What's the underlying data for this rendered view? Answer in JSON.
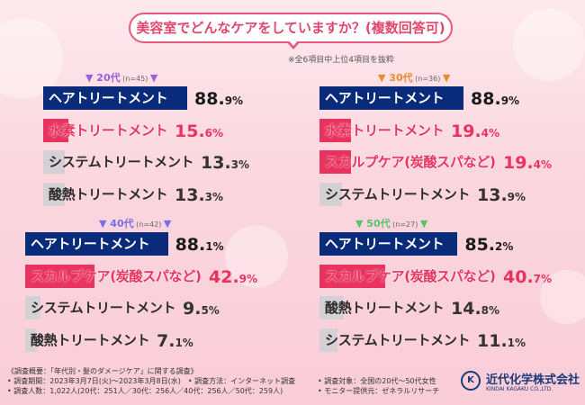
{
  "question": "美容室でどんなケアをしていますか？(複数回答可)",
  "note": "※全6項目中上位4項目を抜粋",
  "colors": {
    "navy": "#0a2a7a",
    "pink": "#e8335f",
    "gray": "#d4d0d4",
    "age20": "#9a5fd9",
    "age30": "#ef8a2a",
    "age40": "#7a6ee6",
    "age50": "#59c46a"
  },
  "chart_data": [
    {
      "type": "bar",
      "group": "20代",
      "n": "(n=45)",
      "categories": [
        "ヘアトリートメント",
        "水素トリートメント",
        "システムトリートメント",
        "酸熱トリートメント"
      ],
      "values": [
        88.9,
        15.6,
        13.3,
        13.3
      ],
      "value_labels": [
        [
          "88.",
          "9%"
        ],
        [
          "15.",
          "6%"
        ],
        [
          "13.",
          "3%"
        ],
        [
          "13.",
          "3%"
        ]
      ]
    },
    {
      "type": "bar",
      "group": "30代",
      "n": "(n=36)",
      "categories": [
        "ヘアトリートメント",
        "水素トリートメント",
        "スカルプケア(炭酸スパなど)",
        "システムトリートメント"
      ],
      "values": [
        88.9,
        19.4,
        19.4,
        13.9
      ],
      "value_labels": [
        [
          "88.",
          "9%"
        ],
        [
          "19.",
          "4%"
        ],
        [
          "19.",
          "4%"
        ],
        [
          "13.",
          "9%"
        ]
      ]
    },
    {
      "type": "bar",
      "group": "40代",
      "n": "(n=42)",
      "categories": [
        "ヘアトリートメント",
        "スカルプケア(炭酸スパなど)",
        "システムトリートメント",
        "酸熱トリートメント"
      ],
      "values": [
        88.1,
        42.9,
        9.5,
        7.1
      ],
      "value_labels": [
        [
          "88.",
          "1%"
        ],
        [
          "42.",
          "9%"
        ],
        [
          "9.",
          "5%"
        ],
        [
          "7.",
          "1%"
        ]
      ]
    },
    {
      "type": "bar",
      "group": "50代",
      "n": "(n=27)",
      "categories": [
        "ヘアトリートメント",
        "スカルプケア(炭酸スパなど)",
        "酸熱トリートメント",
        "システムトリートメント"
      ],
      "values": [
        85.2,
        40.7,
        14.8,
        11.1
      ],
      "value_labels": [
        [
          "85.",
          "2%"
        ],
        [
          "40.",
          "7%"
        ],
        [
          "14.",
          "8%"
        ],
        [
          "11.",
          "1%"
        ]
      ]
    }
  ],
  "footer": {
    "left": [
      "《調査概要：「年代別・髪のダメージケア」に関する調査》",
      "• 調査期間：2023年3月7日(火)～2023年3月8日(水)　• 調査方法：インターネット調査",
      "• 調査人数：1,022人(20代：251人／30代：256人／40代：256人／50代：259人)"
    ],
    "right": [
      "• 調査対象：全国の20代～50代女性",
      "• モニター提供元：ゼネラルリサーチ"
    ]
  },
  "logo": {
    "name": "近代化学株式会社",
    "sub": "KINDAI KAGAKU CO.,LTD."
  }
}
